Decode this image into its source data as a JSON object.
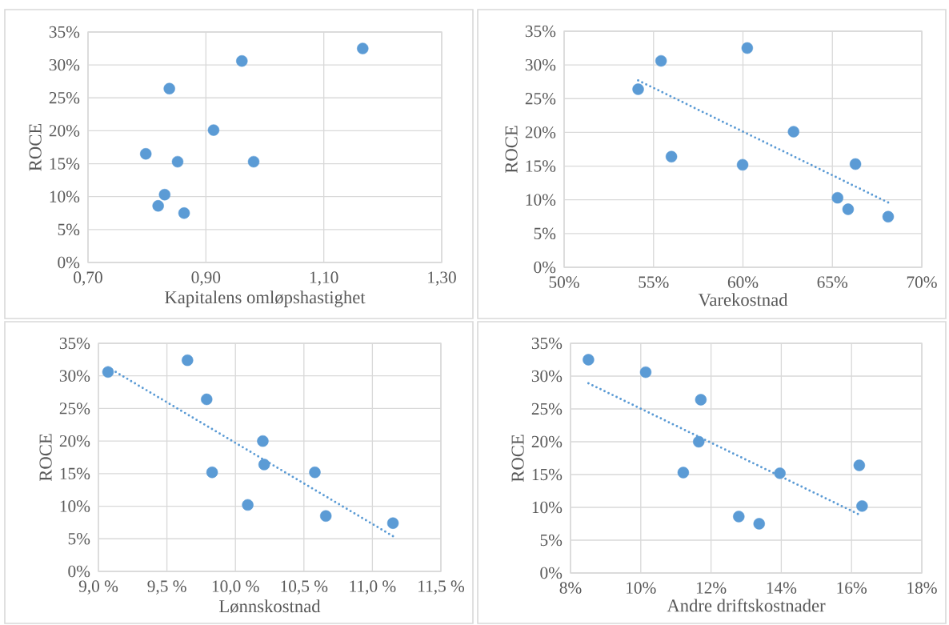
{
  "chart_data": [
    {
      "type": "scatter",
      "xlabel": "Kapitalens omløpshastighet",
      "ylabel": "ROCE",
      "grid": true,
      "marker": "circle",
      "xlim": [
        0.7,
        1.3
      ],
      "ylim": [
        0,
        35
      ],
      "xticks": [
        {
          "value": 0.7,
          "label": "0,70"
        },
        {
          "value": 0.9,
          "label": "0,90"
        },
        {
          "value": 1.1,
          "label": "1,10"
        },
        {
          "value": 1.3,
          "label": "1,30"
        }
      ],
      "yticks": [
        {
          "value": 0,
          "label": "0%"
        },
        {
          "value": 5,
          "label": "5%"
        },
        {
          "value": 10,
          "label": "10%"
        },
        {
          "value": 15,
          "label": "15%"
        },
        {
          "value": 20,
          "label": "20%"
        },
        {
          "value": 25,
          "label": "25%"
        },
        {
          "value": 30,
          "label": "30%"
        },
        {
          "value": 35,
          "label": "35%"
        }
      ],
      "series": [
        {
          "color": "#5b9bd5",
          "x": [
            1.166,
            0.961,
            0.838,
            0.913,
            0.798,
            0.852,
            0.981,
            0.83,
            0.819,
            0.863
          ],
          "values": [
            32.5,
            30.6,
            26.4,
            20.1,
            16.5,
            15.3,
            15.3,
            10.3,
            8.6,
            7.5
          ]
        }
      ]
    },
    {
      "type": "scatter",
      "xlabel": "Varekostnad",
      "ylabel": "ROCE",
      "grid": true,
      "marker": "circle",
      "xlim": [
        50,
        70
      ],
      "ylim": [
        0,
        35
      ],
      "xticks": [
        {
          "value": 50,
          "label": "50%"
        },
        {
          "value": 55,
          "label": "55%"
        },
        {
          "value": 60,
          "label": "60%"
        },
        {
          "value": 65,
          "label": "65%"
        },
        {
          "value": 70,
          "label": "70%"
        }
      ],
      "yticks": [
        {
          "value": 0,
          "label": "0%"
        },
        {
          "value": 5,
          "label": "5%"
        },
        {
          "value": 10,
          "label": "10%"
        },
        {
          "value": 15,
          "label": "15%"
        },
        {
          "value": 20,
          "label": "20%"
        },
        {
          "value": 25,
          "label": "25%"
        },
        {
          "value": 30,
          "label": "30%"
        },
        {
          "value": 35,
          "label": "35%"
        }
      ],
      "series": [
        {
          "color": "#5b9bd5",
          "x": [
            54.14,
            68.12
          ],
          "values": [
            27.7,
            9.6
          ],
          "type": "line",
          "marker": "none",
          "line_style": "dotted"
        },
        {
          "color": "#5b9bd5",
          "x": [
            60.24,
            55.42,
            54.14,
            62.83,
            56.0,
            59.98,
            66.29,
            65.29,
            65.88,
            68.12
          ],
          "values": [
            32.5,
            30.6,
            26.4,
            20.1,
            16.4,
            15.2,
            15.3,
            10.3,
            8.6,
            7.5
          ]
        }
      ]
    },
    {
      "type": "scatter",
      "xlabel": "Lønnskostnad",
      "ylabel": "ROCE",
      "grid": true,
      "marker": "circle",
      "xlim": [
        9.0,
        11.5
      ],
      "ylim": [
        0,
        35
      ],
      "xticks": [
        {
          "value": 9.0,
          "label": "9,0 %"
        },
        {
          "value": 9.5,
          "label": "9,5 %"
        },
        {
          "value": 10.0,
          "label": "10,0 %"
        },
        {
          "value": 10.5,
          "label": "10,5 %"
        },
        {
          "value": 11.0,
          "label": "11,0 %"
        },
        {
          "value": 11.5,
          "label": "11,5 %"
        }
      ],
      "yticks": [
        {
          "value": 0,
          "label": "0%"
        },
        {
          "value": 5,
          "label": "5%"
        },
        {
          "value": 10,
          "label": "10%"
        },
        {
          "value": 15,
          "label": "15%"
        },
        {
          "value": 20,
          "label": "20%"
        },
        {
          "value": 25,
          "label": "25%"
        },
        {
          "value": 30,
          "label": "30%"
        },
        {
          "value": 35,
          "label": "35%"
        }
      ],
      "series": [
        {
          "color": "#5b9bd5",
          "x": [
            9.07,
            11.15
          ],
          "values": [
            31.3,
            5.4
          ],
          "type": "line",
          "marker": "none",
          "line_style": "dotted"
        },
        {
          "color": "#5b9bd5",
          "x": [
            9.65,
            9.07,
            9.79,
            10.2,
            10.21,
            9.83,
            10.58,
            10.09,
            10.66,
            11.15
          ],
          "values": [
            32.4,
            30.6,
            26.4,
            20.0,
            16.4,
            15.2,
            15.2,
            10.2,
            8.5,
            7.4
          ]
        }
      ]
    },
    {
      "type": "scatter",
      "xlabel": "Andre driftskostnader",
      "ylabel": "ROCE",
      "grid": true,
      "marker": "circle",
      "xlim": [
        8,
        18
      ],
      "ylim": [
        0,
        35
      ],
      "xticks": [
        {
          "value": 8,
          "label": "8%"
        },
        {
          "value": 10,
          "label": "10%"
        },
        {
          "value": 12,
          "label": "12%"
        },
        {
          "value": 14,
          "label": "14%"
        },
        {
          "value": 16,
          "label": "16%"
        },
        {
          "value": 18,
          "label": "18%"
        }
      ],
      "yticks": [
        {
          "value": 0,
          "label": "0%"
        },
        {
          "value": 5,
          "label": "5%"
        },
        {
          "value": 10,
          "label": "10%"
        },
        {
          "value": 15,
          "label": "15%"
        },
        {
          "value": 20,
          "label": "20%"
        },
        {
          "value": 25,
          "label": "25%"
        },
        {
          "value": 30,
          "label": "30%"
        },
        {
          "value": 35,
          "label": "35%"
        }
      ],
      "series": [
        {
          "color": "#5b9bd5",
          "x": [
            8.51,
            16.18
          ],
          "values": [
            28.9,
            9.0
          ],
          "type": "line",
          "marker": "none",
          "line_style": "dotted"
        },
        {
          "color": "#5b9bd5",
          "x": [
            8.51,
            10.14,
            11.71,
            11.65,
            11.21,
            13.96,
            16.22,
            16.3,
            12.79,
            13.37
          ],
          "values": [
            32.5,
            30.6,
            26.4,
            20.0,
            15.3,
            15.2,
            16.4,
            10.2,
            8.6,
            7.5
          ]
        }
      ]
    }
  ]
}
